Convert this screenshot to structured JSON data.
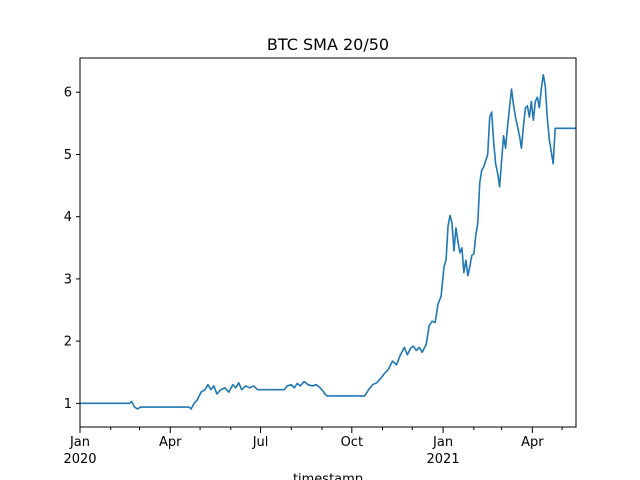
{
  "chart_data": {
    "type": "line",
    "title": "BTC SMA 20/50",
    "xlabel": "timestamp",
    "ylabel": "",
    "grid": false,
    "legend": "none",
    "xlim": [
      "2020-01-01",
      "2021-05-15"
    ],
    "ylim": [
      0.62,
      6.55
    ],
    "x_major_ticks": [
      {
        "date": "2020-01-01",
        "label": "Jan",
        "sublabel": "2020"
      },
      {
        "date": "2020-04-01",
        "label": "Apr",
        "sublabel": ""
      },
      {
        "date": "2020-07-01",
        "label": "Jul",
        "sublabel": ""
      },
      {
        "date": "2020-10-01",
        "label": "Oct",
        "sublabel": ""
      },
      {
        "date": "2021-01-01",
        "label": "Jan",
        "sublabel": "2021"
      },
      {
        "date": "2021-04-01",
        "label": "Apr",
        "sublabel": ""
      }
    ],
    "x_minor_ticks": [
      "2020-02-01",
      "2020-03-01",
      "2020-05-01",
      "2020-06-01",
      "2020-08-01",
      "2020-09-01",
      "2020-11-01",
      "2020-12-01",
      "2021-02-01",
      "2021-03-01",
      "2021-05-01"
    ],
    "y_ticks": [
      1,
      2,
      3,
      4,
      5,
      6
    ],
    "series": [
      {
        "color": "#1f77b4",
        "points": [
          [
            "2020-01-01",
            1.0
          ],
          [
            "2020-02-20",
            1.0
          ],
          [
            "2020-02-22",
            1.03
          ],
          [
            "2020-02-25",
            0.94
          ],
          [
            "2020-02-28",
            0.91
          ],
          [
            "2020-03-02",
            0.94
          ],
          [
            "2020-03-20",
            0.94
          ],
          [
            "2020-04-15",
            0.94
          ],
          [
            "2020-04-20",
            0.94
          ],
          [
            "2020-04-22",
            0.91
          ],
          [
            "2020-04-25",
            1.0
          ],
          [
            "2020-04-28",
            1.05
          ],
          [
            "2020-05-02",
            1.18
          ],
          [
            "2020-05-06",
            1.22
          ],
          [
            "2020-05-09",
            1.3
          ],
          [
            "2020-05-12",
            1.22
          ],
          [
            "2020-05-15",
            1.28
          ],
          [
            "2020-05-18",
            1.15
          ],
          [
            "2020-05-22",
            1.22
          ],
          [
            "2020-05-26",
            1.25
          ],
          [
            "2020-05-30",
            1.18
          ],
          [
            "2020-06-03",
            1.3
          ],
          [
            "2020-06-06",
            1.25
          ],
          [
            "2020-06-09",
            1.33
          ],
          [
            "2020-06-12",
            1.22
          ],
          [
            "2020-06-16",
            1.28
          ],
          [
            "2020-06-20",
            1.25
          ],
          [
            "2020-06-24",
            1.28
          ],
          [
            "2020-06-28",
            1.22
          ],
          [
            "2020-07-05",
            1.22
          ],
          [
            "2020-07-20",
            1.22
          ],
          [
            "2020-07-25",
            1.22
          ],
          [
            "2020-07-28",
            1.28
          ],
          [
            "2020-08-01",
            1.3
          ],
          [
            "2020-08-04",
            1.25
          ],
          [
            "2020-08-07",
            1.32
          ],
          [
            "2020-08-10",
            1.28
          ],
          [
            "2020-08-14",
            1.35
          ],
          [
            "2020-08-18",
            1.3
          ],
          [
            "2020-08-22",
            1.28
          ],
          [
            "2020-08-26",
            1.3
          ],
          [
            "2020-08-30",
            1.25
          ],
          [
            "2020-09-02",
            1.2
          ],
          [
            "2020-09-04",
            1.15
          ],
          [
            "2020-09-06",
            1.12
          ],
          [
            "2020-09-20",
            1.12
          ],
          [
            "2020-10-10",
            1.12
          ],
          [
            "2020-10-14",
            1.12
          ],
          [
            "2020-10-18",
            1.22
          ],
          [
            "2020-10-22",
            1.3
          ],
          [
            "2020-10-26",
            1.33
          ],
          [
            "2020-10-30",
            1.4
          ],
          [
            "2020-11-03",
            1.48
          ],
          [
            "2020-11-07",
            1.55
          ],
          [
            "2020-11-11",
            1.68
          ],
          [
            "2020-11-15",
            1.62
          ],
          [
            "2020-11-19",
            1.78
          ],
          [
            "2020-11-23",
            1.9
          ],
          [
            "2020-11-26",
            1.78
          ],
          [
            "2020-11-29",
            1.88
          ],
          [
            "2020-12-02",
            1.92
          ],
          [
            "2020-12-05",
            1.85
          ],
          [
            "2020-12-08",
            1.9
          ],
          [
            "2020-12-11",
            1.82
          ],
          [
            "2020-12-15",
            1.95
          ],
          [
            "2020-12-18",
            2.25
          ],
          [
            "2020-12-21",
            2.32
          ],
          [
            "2020-12-24",
            2.3
          ],
          [
            "2020-12-27",
            2.6
          ],
          [
            "2020-12-30",
            2.72
          ],
          [
            "2021-01-02",
            3.2
          ],
          [
            "2021-01-04",
            3.3
          ],
          [
            "2021-01-06",
            3.85
          ],
          [
            "2021-01-08",
            4.02
          ],
          [
            "2021-01-10",
            3.9
          ],
          [
            "2021-01-12",
            3.45
          ],
          [
            "2021-01-14",
            3.82
          ],
          [
            "2021-01-16",
            3.6
          ],
          [
            "2021-01-18",
            3.42
          ],
          [
            "2021-01-20",
            3.5
          ],
          [
            "2021-01-22",
            3.1
          ],
          [
            "2021-01-24",
            3.3
          ],
          [
            "2021-01-26",
            3.05
          ],
          [
            "2021-01-28",
            3.2
          ],
          [
            "2021-01-30",
            3.38
          ],
          [
            "2021-02-01",
            3.4
          ],
          [
            "2021-02-03",
            3.7
          ],
          [
            "2021-02-05",
            3.9
          ],
          [
            "2021-02-07",
            4.55
          ],
          [
            "2021-02-09",
            4.75
          ],
          [
            "2021-02-11",
            4.8
          ],
          [
            "2021-02-13",
            4.9
          ],
          [
            "2021-02-15",
            5.0
          ],
          [
            "2021-02-17",
            5.6
          ],
          [
            "2021-02-19",
            5.68
          ],
          [
            "2021-02-21",
            5.2
          ],
          [
            "2021-02-23",
            4.85
          ],
          [
            "2021-02-25",
            4.7
          ],
          [
            "2021-02-27",
            4.48
          ],
          [
            "2021-03-01",
            4.9
          ],
          [
            "2021-03-03",
            5.3
          ],
          [
            "2021-03-05",
            5.1
          ],
          [
            "2021-03-07",
            5.45
          ],
          [
            "2021-03-09",
            5.75
          ],
          [
            "2021-03-11",
            6.05
          ],
          [
            "2021-03-13",
            5.8
          ],
          [
            "2021-03-15",
            5.6
          ],
          [
            "2021-03-17",
            5.45
          ],
          [
            "2021-03-19",
            5.3
          ],
          [
            "2021-03-21",
            5.1
          ],
          [
            "2021-03-23",
            5.45
          ],
          [
            "2021-03-25",
            5.75
          ],
          [
            "2021-03-27",
            5.78
          ],
          [
            "2021-03-29",
            5.6
          ],
          [
            "2021-03-31",
            5.85
          ],
          [
            "2021-04-02",
            5.55
          ],
          [
            "2021-04-04",
            5.85
          ],
          [
            "2021-04-06",
            5.92
          ],
          [
            "2021-04-08",
            5.75
          ],
          [
            "2021-04-10",
            6.05
          ],
          [
            "2021-04-12",
            6.28
          ],
          [
            "2021-04-14",
            6.1
          ],
          [
            "2021-04-16",
            5.6
          ],
          [
            "2021-04-18",
            5.25
          ],
          [
            "2021-04-20",
            5.05
          ],
          [
            "2021-04-22",
            4.85
          ],
          [
            "2021-04-24",
            5.42
          ],
          [
            "2021-05-15",
            5.42
          ]
        ]
      }
    ]
  }
}
